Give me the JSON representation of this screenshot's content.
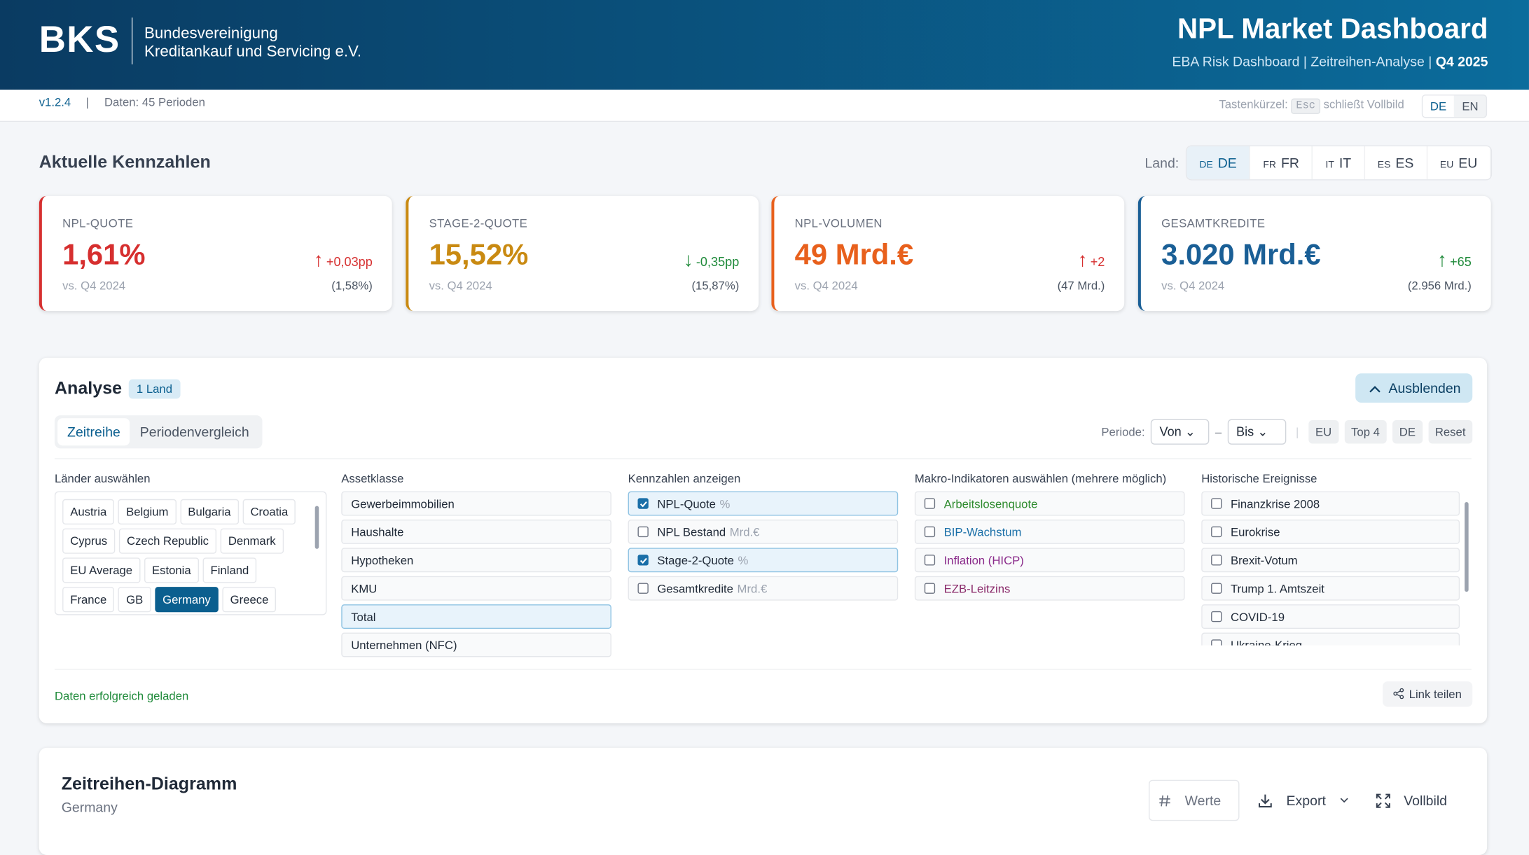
{
  "header": {
    "logo": "BKS",
    "org_line1": "Bundesvereinigung",
    "org_line2": "Kreditankauf und Servicing e.V.",
    "title": "NPL Market Dashboard",
    "subtitle": "EBA Risk Dashboard | Zeitreihen-Analyse |",
    "period": "Q4 2025"
  },
  "status": {
    "version": "v1.2.4",
    "separator": "|",
    "data_count": "Daten: 45 Perioden",
    "shortcut_label": "Tastenkürzel:",
    "shortcut_key": "Esc",
    "shortcut_text": "schließt Vollbild",
    "languages": [
      "DE",
      "EN"
    ],
    "active_language": 0
  },
  "kpi_section": {
    "title": "Aktuelle Kennzahlen",
    "country_label": "Land:",
    "countries": [
      {
        "code": "DE",
        "label": "DE"
      },
      {
        "code": "FR",
        "label": "FR"
      },
      {
        "code": "IT",
        "label": "IT"
      },
      {
        "code": "ES",
        "label": "ES"
      },
      {
        "code": "EU",
        "label": "EU"
      }
    ],
    "active_country": 0,
    "kpis": [
      {
        "label": "NPL-QUOTE",
        "value": "1,61%",
        "arrow": "↑",
        "change": "+0,03pp",
        "compare": "vs. Q4 2024",
        "previous": "(1,58%)",
        "color": "#d62f2f",
        "change_color": "#d62f2f"
      },
      {
        "label": "STAGE-2-QUOTE",
        "value": "15,52%",
        "arrow": "↓",
        "change": "-0,35pp",
        "compare": "vs. Q4 2024",
        "previous": "(15,87%)",
        "color": "#c98a12",
        "change_color": "#1f8a3a"
      },
      {
        "label": "NPL-VOLUMEN",
        "value": "49 Mrd.€",
        "arrow": "↑",
        "change": "+2",
        "compare": "vs. Q4 2024",
        "previous": "(47 Mrd.)",
        "color": "#e8601c",
        "change_color": "#d62f2f"
      },
      {
        "label": "GESAMTKREDITE",
        "value": "3.020 Mrd.€",
        "arrow": "↑",
        "change": "+65",
        "compare": "vs. Q4 2024",
        "previous": "(2.956 Mrd.)",
        "color": "#1a5f96",
        "change_color": "#1f8a3a"
      }
    ]
  },
  "analysis": {
    "title": "Analyse",
    "badge": "1 Land",
    "hide_button": "Ausblenden",
    "tabs": [
      "Zeitreihe",
      "Periodenvergleich"
    ],
    "active_tab": 0,
    "period_label": "Periode:",
    "from": "Von",
    "dash": "–",
    "to": "Bis",
    "separator": "|",
    "presets": [
      "EU",
      "Top 4",
      "DE",
      "Reset"
    ],
    "countries": {
      "title": "Länder auswählen",
      "items": [
        "Austria",
        "Belgium",
        "Bulgaria",
        "Croatia",
        "Cyprus",
        "Czech Republic",
        "Denmark",
        "EU Average",
        "Estonia",
        "Finland",
        "France",
        "GB",
        "Germany",
        "Greece"
      ],
      "selected": [
        12
      ]
    },
    "asset_classes": {
      "title": "Assetklasse",
      "items": [
        "Gewerbeimmobilien",
        "Haushalte",
        "Hypotheken",
        "KMU",
        "Total",
        "Unternehmen (NFC)"
      ],
      "selected": [
        4
      ]
    },
    "metrics": {
      "title": "Kennzahlen anzeigen",
      "items": [
        {
          "name": "NPL-Quote",
          "unit": "%",
          "checked": true
        },
        {
          "name": "NPL Bestand",
          "unit": "Mrd.€",
          "checked": false
        },
        {
          "name": "Stage-2-Quote",
          "unit": "%",
          "checked": true
        },
        {
          "name": "Gesamtkredite",
          "unit": "Mrd.€",
          "checked": false
        }
      ]
    },
    "macro": {
      "title": "Makro-Indikatoren auswählen (mehrere möglich)",
      "items": [
        {
          "name": "Arbeitslosenquote",
          "color": "#2e8b2e"
        },
        {
          "name": "BIP-Wachstum",
          "color": "#1a6fa8"
        },
        {
          "name": "Inflation (HICP)",
          "color": "#8a2a8a"
        },
        {
          "name": "EZB-Leitzins",
          "color": "#8a2a6a"
        }
      ]
    },
    "events": {
      "title": "Historische Ereignisse",
      "items": [
        "Finanzkrise 2008",
        "Eurokrise",
        "Brexit-Votum",
        "Trump 1. Amtszeit",
        "COVID-19",
        "Ukraine-Krieg"
      ]
    },
    "status_message": "Daten erfolgreich geladen",
    "share_button": "Link teilen"
  },
  "chart_panel": {
    "title": "Zeitreihen-Diagramm",
    "subtitle": "Germany",
    "buttons": [
      "Werte",
      "Export",
      "Vollbild"
    ]
  }
}
